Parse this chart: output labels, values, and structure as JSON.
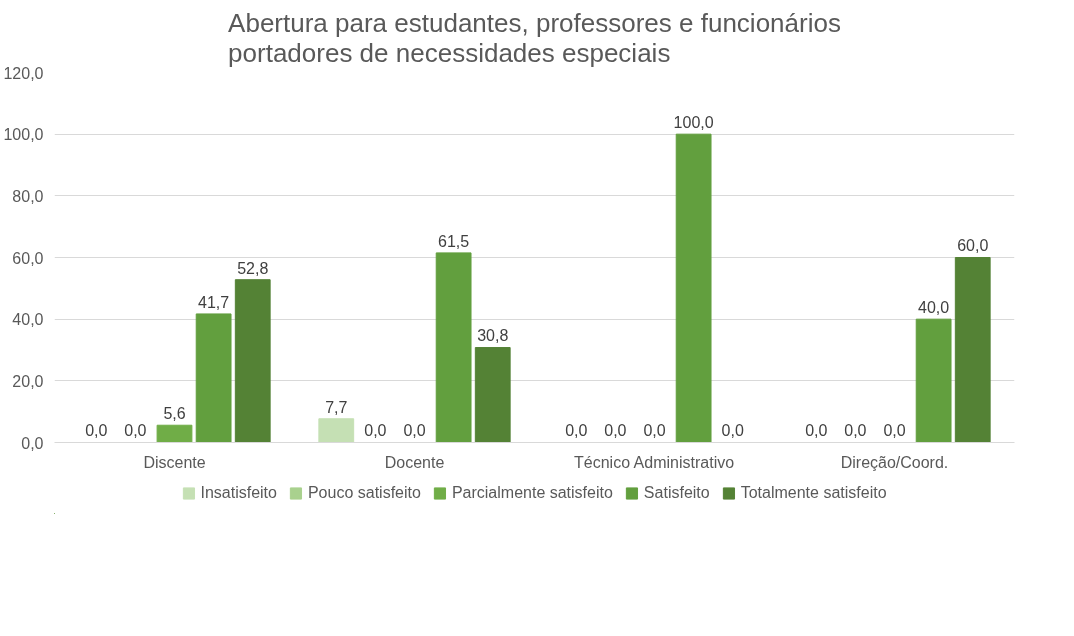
{
  "chart_data": {
    "type": "bar",
    "title": "Abertura para estudantes, professores e funcionários portadores de necessidades especiais",
    "categories": [
      "Discente",
      "Docente",
      "Técnico Administrativo",
      "Direção/Coord."
    ],
    "series": [
      {
        "name": "Insatisfeito",
        "color": "#c5e0b4",
        "values": [
          0,
          7.7,
          0,
          0
        ],
        "value_labels": [
          "0,0",
          "7,7",
          "0,0",
          "0,0"
        ]
      },
      {
        "name": "Pouco satisfeito",
        "color": "#a9d18e",
        "values": [
          0,
          0,
          0,
          0
        ],
        "value_labels": [
          "0,0",
          "0,0",
          "0,0",
          "0,0"
        ]
      },
      {
        "name": "Parcialmente satisfeito",
        "color": "#70ad47",
        "values": [
          5.6,
          0,
          0,
          0
        ],
        "value_labels": [
          "5,6",
          "0,0",
          "0,0",
          "0,0"
        ]
      },
      {
        "name": "Satisfeito",
        "color": "#629f3e",
        "values": [
          41.7,
          61.5,
          100,
          40
        ],
        "value_labels": [
          "41,7",
          "61,5",
          "100,0",
          "40,0"
        ]
      },
      {
        "name": "Totalmente satisfeito",
        "color": "#548235",
        "values": [
          52.8,
          30.8,
          0,
          60
        ],
        "value_labels": [
          "52,8",
          "30,8",
          "0,0",
          "60,0"
        ]
      }
    ],
    "ylim": [
      0,
      120
    ],
    "yticks": [
      {
        "value": 0,
        "label": "0,0"
      },
      {
        "value": 20,
        "label": "20,0"
      },
      {
        "value": 40,
        "label": "40,0"
      },
      {
        "value": 60,
        "label": "60,0"
      },
      {
        "value": 80,
        "label": "80,0"
      },
      {
        "value": 100,
        "label": "100,0"
      },
      {
        "value": 120,
        "label": "120,0"
      }
    ],
    "grid": "y",
    "legend": "bottom"
  }
}
